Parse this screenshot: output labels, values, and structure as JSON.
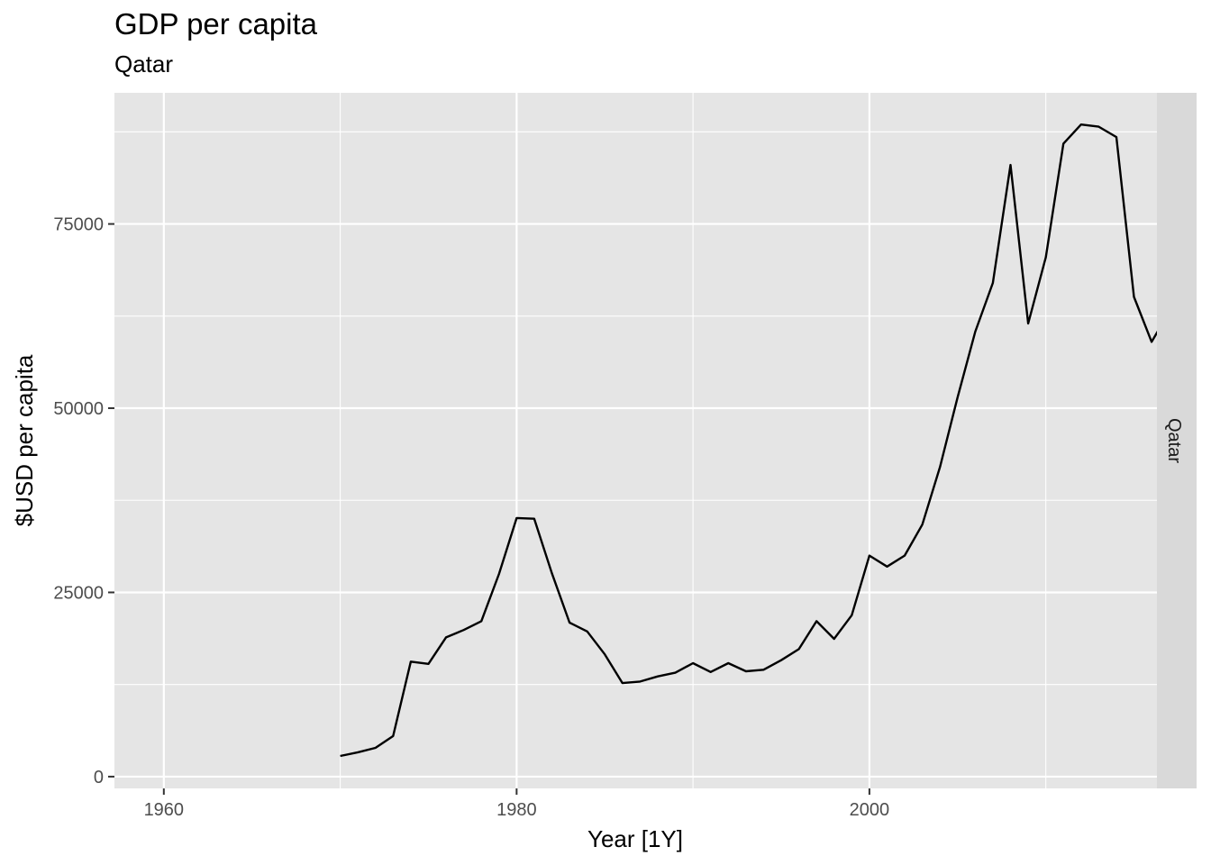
{
  "chart_data": {
    "type": "line",
    "title": "GDP per capita",
    "subtitle": "Qatar",
    "xlabel": "Year [1Y]",
    "ylabel": "$USD per capita",
    "facet_label": "Qatar",
    "xlim": [
      1957.2,
      2016.3
    ],
    "ylim": [
      -1600,
      92800
    ],
    "x_ticks": [
      1960,
      1980,
      2000
    ],
    "x_tick_labels": [
      "1960",
      "1980",
      "2000"
    ],
    "x_minor_ticks": [
      1970,
      1990,
      2010
    ],
    "y_ticks": [
      0,
      25000,
      50000,
      75000
    ],
    "y_tick_labels": [
      "0",
      "25000",
      "50000",
      "75000"
    ],
    "y_minor_ticks": [
      12500,
      37500,
      62500,
      87500
    ],
    "grid": true,
    "colors": {
      "panel": "#e5e5e5",
      "grid": "#ffffff",
      "line": "#000000",
      "strip": "#d9d9d9"
    },
    "series": [
      {
        "x": [
          1970,
          1971,
          1972,
          1973,
          1974,
          1975,
          1976,
          1977,
          1978,
          1979,
          1980,
          1981,
          1982,
          1983,
          1984,
          1985,
          1986,
          1987,
          1988,
          1989,
          1990,
          1991,
          1992,
          1993,
          1994,
          1995,
          1996,
          1997,
          1998,
          1999,
          2000,
          2001,
          2002,
          2003,
          2004,
          2005,
          2006,
          2007,
          2008,
          2009,
          2010,
          2011,
          2012,
          2013,
          2014,
          2015,
          2016,
          2017
        ],
        "values": [
          2800,
          3300,
          3900,
          5500,
          15600,
          15300,
          18900,
          19900,
          21100,
          27500,
          35100,
          35000,
          27600,
          20900,
          19700,
          16600,
          12700,
          12900,
          13600,
          14100,
          15400,
          14200,
          15400,
          14300,
          14500,
          15800,
          17300,
          21100,
          18700,
          21900,
          30000,
          28500,
          30000,
          34200,
          42000,
          51500,
          60400,
          67000,
          83000,
          61500,
          70500,
          85900,
          88500,
          88200,
          86800,
          65100,
          59000,
          63100
        ]
      }
    ]
  }
}
